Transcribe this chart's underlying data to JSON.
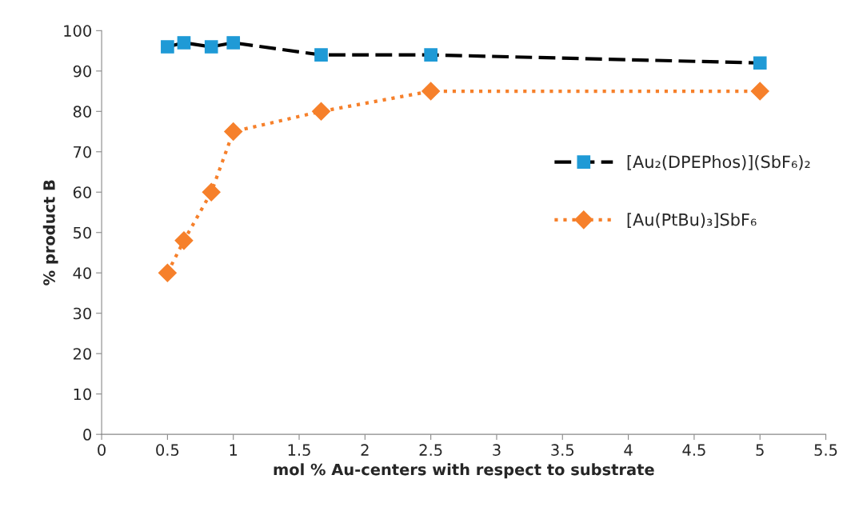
{
  "chart_data": {
    "type": "line",
    "xlabel": "mol % Au-centers with respect to substrate",
    "ylabel": "% product B",
    "x": [
      0.5,
      0.625,
      0.833,
      1,
      1.667,
      2.5,
      5
    ],
    "series": [
      {
        "name": "[Au₂(DPEPhos)](SbF₆)₂",
        "color": "#000000",
        "colors": [
          "#1f9ad6",
          "#1f9ad6",
          "#1f9ad6",
          "#1f9ad6",
          "#1f9ad6",
          "#1f9ad6",
          "#1f9ad6"
        ],
        "values": [
          96,
          97,
          96,
          97,
          94,
          94,
          92
        ],
        "marker": "square",
        "line_style": "dashed"
      },
      {
        "name": "[Au(PtBu)₃]SbF₆",
        "color": "#f6802b",
        "values": [
          40,
          48,
          60,
          75,
          80,
          85,
          85
        ],
        "marker": "diamond",
        "line_style": "dotted"
      }
    ],
    "xlim": [
      0,
      5.5
    ],
    "xticks": [
      0,
      0.5,
      1,
      1.5,
      2,
      2.5,
      3,
      3.5,
      4,
      4.5,
      5,
      5.5
    ],
    "ylim": [
      0,
      100
    ],
    "yticks": [
      0,
      10,
      20,
      30,
      40,
      50,
      60,
      70,
      80,
      90,
      100
    ],
    "grid": false,
    "legend": "right"
  }
}
